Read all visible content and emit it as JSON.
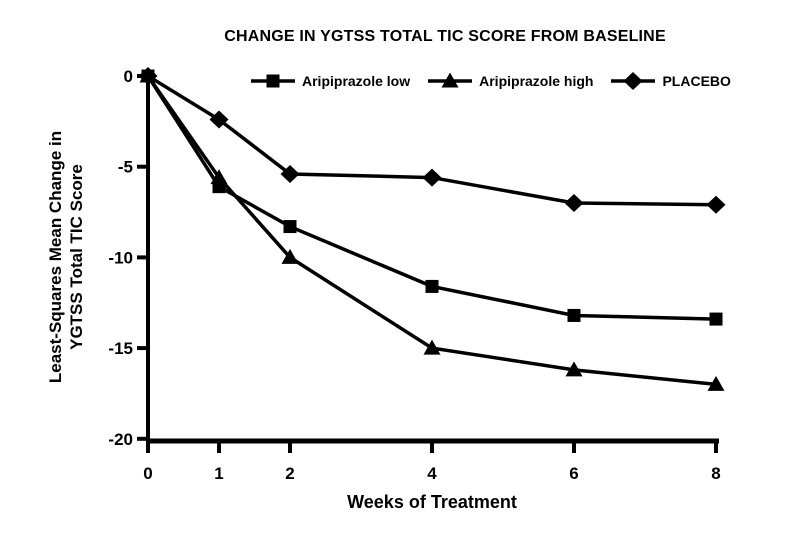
{
  "figure": {
    "background_color": "#ffffff",
    "ink_color": "#000000"
  },
  "chart_data": {
    "type": "line",
    "title": "CHANGE IN YGTSS TOTAL TIC SCORE FROM BASELINE",
    "xlabel": "Weeks of Treatment",
    "ylabel": "Least-Squares Mean Change in\nYGTSS Total TIC Score",
    "x": [
      0,
      1,
      2,
      4,
      6,
      8
    ],
    "x_ticks": [
      "0",
      "1",
      "2",
      "4",
      "6",
      "8"
    ],
    "y_ticks": [
      0,
      -5,
      -10,
      -15,
      -20
    ],
    "xlim": [
      0,
      8
    ],
    "ylim": [
      -20,
      0
    ],
    "grid": false,
    "legend_position": "top-inside",
    "series": [
      {
        "name": "Aripiprazole low",
        "marker": "square",
        "color": "#000000",
        "values": [
          0,
          -6.1,
          -8.3,
          -11.6,
          -13.2,
          -13.4
        ]
      },
      {
        "name": "Aripiprazole high",
        "marker": "triangle",
        "color": "#000000",
        "values": [
          0,
          -5.6,
          -10.0,
          -15.0,
          -16.2,
          -17.0
        ]
      },
      {
        "name": "PLACEBO",
        "marker": "diamond",
        "color": "#000000",
        "values": [
          0,
          -2.4,
          -5.4,
          -5.6,
          -7.0,
          -7.1
        ]
      }
    ]
  }
}
